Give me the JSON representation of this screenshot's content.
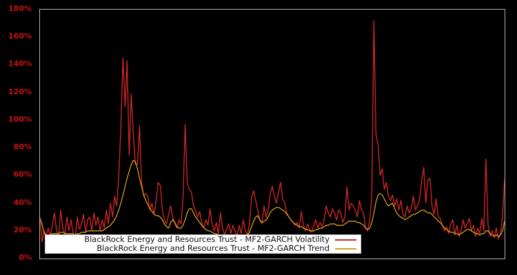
{
  "figure": {
    "background": "#000000",
    "plot_border_color": "#b3b3b3",
    "tick_label_color": "#cc1111"
  },
  "y_axis": {
    "unit": "%",
    "min": 0,
    "max": 180,
    "step": 20,
    "tick_labels": [
      "0%",
      "20%",
      "40%",
      "60%",
      "80%",
      "100%",
      "120%",
      "140%",
      "160%",
      "180%"
    ]
  },
  "legend": {
    "items": [
      {
        "label": "BlackRock Energy and Resources Trust - MF2-GARCH Volatility",
        "color": "#cd2626"
      },
      {
        "label": "BlackRock Energy and Resources Trust - MF2-GARCH Trend",
        "color": "#d4a017"
      }
    ]
  },
  "chart_data": {
    "type": "line",
    "title": "",
    "xlabel": "",
    "ylabel": "",
    "y_unit": "%",
    "ylim": [
      0,
      180
    ],
    "grid": false,
    "legend_position": "lower center",
    "x_axis_labels_visible": false,
    "series": [
      {
        "name": "BlackRock Energy and Resources Trust - MF2-GARCH Volatility",
        "color": "#cd2626",
        "values": [
          30,
          12,
          20,
          17,
          22,
          16,
          25,
          33,
          20,
          16,
          35,
          22,
          17,
          30,
          20,
          28,
          18,
          16,
          30,
          21,
          25,
          32,
          19,
          28,
          30,
          20,
          33,
          24,
          30,
          20,
          28,
          22,
          35,
          25,
          40,
          30,
          45,
          38,
          60,
          95,
          145,
          110,
          143,
          75,
          119,
          90,
          68,
          68,
          96,
          55,
          45,
          47,
          45,
          35,
          40,
          32,
          42,
          55,
          53,
          35,
          28,
          25,
          32,
          38,
          30,
          25,
          22,
          28,
          25,
          45,
          97,
          55,
          50,
          48,
          38,
          35,
          30,
          34,
          26,
          22,
          28,
          24,
          36,
          25,
          20,
          26,
          18,
          33,
          22,
          17,
          21,
          25,
          18,
          24,
          20,
          16,
          24,
          18,
          28,
          20,
          17,
          25,
          44,
          49,
          42,
          35,
          28,
          25,
          38,
          30,
          35,
          47,
          52,
          45,
          40,
          48,
          55,
          43,
          40,
          33,
          30,
          28,
          26,
          24,
          26,
          22,
          34,
          24,
          20,
          25,
          21,
          19,
          24,
          28,
          22,
          26,
          23,
          28,
          38,
          33,
          30,
          36,
          33,
          28,
          35,
          33,
          26,
          30,
          52,
          35,
          40,
          38,
          35,
          30,
          42,
          35,
          33,
          22,
          20,
          28,
          45,
          172,
          90,
          82,
          60,
          65,
          50,
          55,
          45,
          42,
          46,
          38,
          43,
          35,
          42,
          32,
          30,
          38,
          33,
          36,
          45,
          35,
          38,
          42,
          56,
          66,
          40,
          57,
          58,
          38,
          32,
          43,
          30,
          29,
          24,
          20,
          23,
          18,
          25,
          28,
          17,
          24,
          16,
          20,
          28,
          22,
          25,
          29,
          20,
          24,
          16,
          22,
          18,
          29,
          20,
          72,
          25,
          16,
          20,
          15,
          22,
          14,
          18,
          30,
          57
        ]
      },
      {
        "name": "BlackRock Energy and Resources Trust - MF2-GARCH Trend",
        "color": "#d4a017",
        "values": [
          29,
          25,
          18,
          17,
          17,
          17,
          18,
          18,
          18,
          18,
          19,
          19,
          18,
          18,
          18,
          18,
          18,
          17,
          18,
          18,
          19,
          19,
          19,
          20,
          20,
          20,
          20,
          20,
          20,
          20,
          20,
          21,
          22,
          23,
          24,
          26,
          28,
          31,
          35,
          40,
          46,
          52,
          58,
          63,
          68,
          71,
          70,
          65,
          58,
          52,
          46,
          42,
          39,
          36,
          34,
          32,
          31,
          31,
          30,
          28,
          25,
          23,
          22,
          26,
          28,
          26,
          23,
          22,
          22,
          24,
          28,
          33,
          36,
          36,
          33,
          30,
          28,
          26,
          24,
          22,
          21,
          20,
          20,
          19,
          18,
          18,
          17,
          17,
          17,
          16,
          16,
          16,
          16,
          17,
          17,
          16,
          16,
          16,
          17,
          17,
          17,
          19,
          23,
          27,
          30,
          31,
          28,
          26,
          27,
          28,
          30,
          33,
          35,
          36,
          37,
          37,
          36,
          35,
          34,
          32,
          30,
          28,
          26,
          25,
          24,
          23,
          23,
          22,
          21,
          21,
          20,
          20,
          20,
          21,
          21,
          22,
          22,
          23,
          24,
          24,
          25,
          25,
          25,
          24,
          24,
          24,
          24,
          25,
          26,
          27,
          27,
          27,
          27,
          26,
          26,
          25,
          24,
          22,
          21,
          22,
          26,
          33,
          41,
          46,
          47,
          46,
          43,
          40,
          38,
          39,
          40,
          36,
          33,
          31,
          30,
          29,
          28,
          29,
          30,
          31,
          32,
          32,
          33,
          34,
          35,
          35,
          34,
          33,
          33,
          32,
          30,
          29,
          27,
          26,
          24,
          22,
          21,
          20,
          19,
          19,
          18,
          18,
          17,
          18,
          19,
          20,
          21,
          21,
          20,
          19,
          18,
          18,
          17,
          18,
          18,
          20,
          20,
          18,
          17,
          16,
          17,
          16,
          17,
          20,
          27
        ]
      }
    ]
  }
}
